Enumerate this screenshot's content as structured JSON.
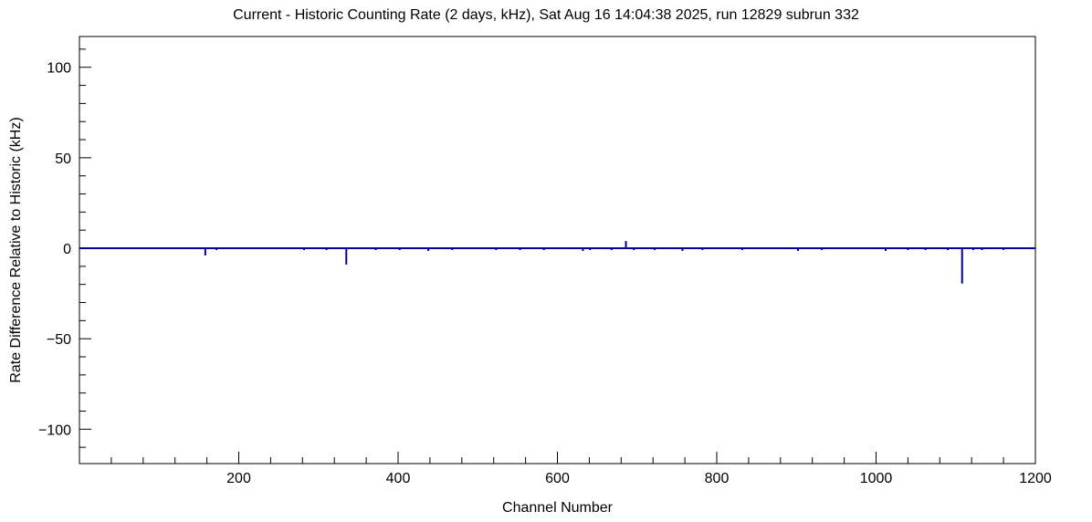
{
  "chart_data": {
    "type": "line",
    "title": "Current - Historic Counting Rate (2 days, kHz), Sat Aug 16 14:04:38 2025, run 12829 subrun 332",
    "xlabel": "Channel Number",
    "ylabel": "Rate Difference Relative to Historic (kHz)",
    "xlim": [
      0,
      1200
    ],
    "ylim": [
      -119,
      117
    ],
    "x_major_ticks": [
      200,
      400,
      600,
      800,
      1000,
      1200
    ],
    "x_minor_step": 40,
    "y_major_ticks": [
      -100,
      -50,
      0,
      50,
      100
    ],
    "y_minor_step": 10,
    "grid": false,
    "legend": "none",
    "line_color": "#000099",
    "axis_color": "#000000",
    "baseline_value": 0,
    "spikes": [
      {
        "x": 158,
        "y": -4
      },
      {
        "x": 172,
        "y": -1
      },
      {
        "x": 282,
        "y": -1
      },
      {
        "x": 310,
        "y": -1
      },
      {
        "x": 335,
        "y": -9
      },
      {
        "x": 372,
        "y": -1
      },
      {
        "x": 402,
        "y": -1
      },
      {
        "x": 438,
        "y": -1.5
      },
      {
        "x": 468,
        "y": -1
      },
      {
        "x": 523,
        "y": -1
      },
      {
        "x": 553,
        "y": -1
      },
      {
        "x": 583,
        "y": -1
      },
      {
        "x": 632,
        "y": -1.5
      },
      {
        "x": 641,
        "y": -1
      },
      {
        "x": 668,
        "y": -1
      },
      {
        "x": 686,
        "y": 4
      },
      {
        "x": 696,
        "y": -1
      },
      {
        "x": 722,
        "y": -1
      },
      {
        "x": 757,
        "y": -1.5
      },
      {
        "x": 782,
        "y": -1
      },
      {
        "x": 832,
        "y": -1
      },
      {
        "x": 902,
        "y": -1.5
      },
      {
        "x": 932,
        "y": -1
      },
      {
        "x": 1012,
        "y": -1.5
      },
      {
        "x": 1040,
        "y": -1
      },
      {
        "x": 1062,
        "y": -1
      },
      {
        "x": 1090,
        "y": -1
      },
      {
        "x": 1108,
        "y": -19.5
      },
      {
        "x": 1122,
        "y": -1
      },
      {
        "x": 1133,
        "y": -1
      },
      {
        "x": 1160,
        "y": -1
      }
    ]
  }
}
